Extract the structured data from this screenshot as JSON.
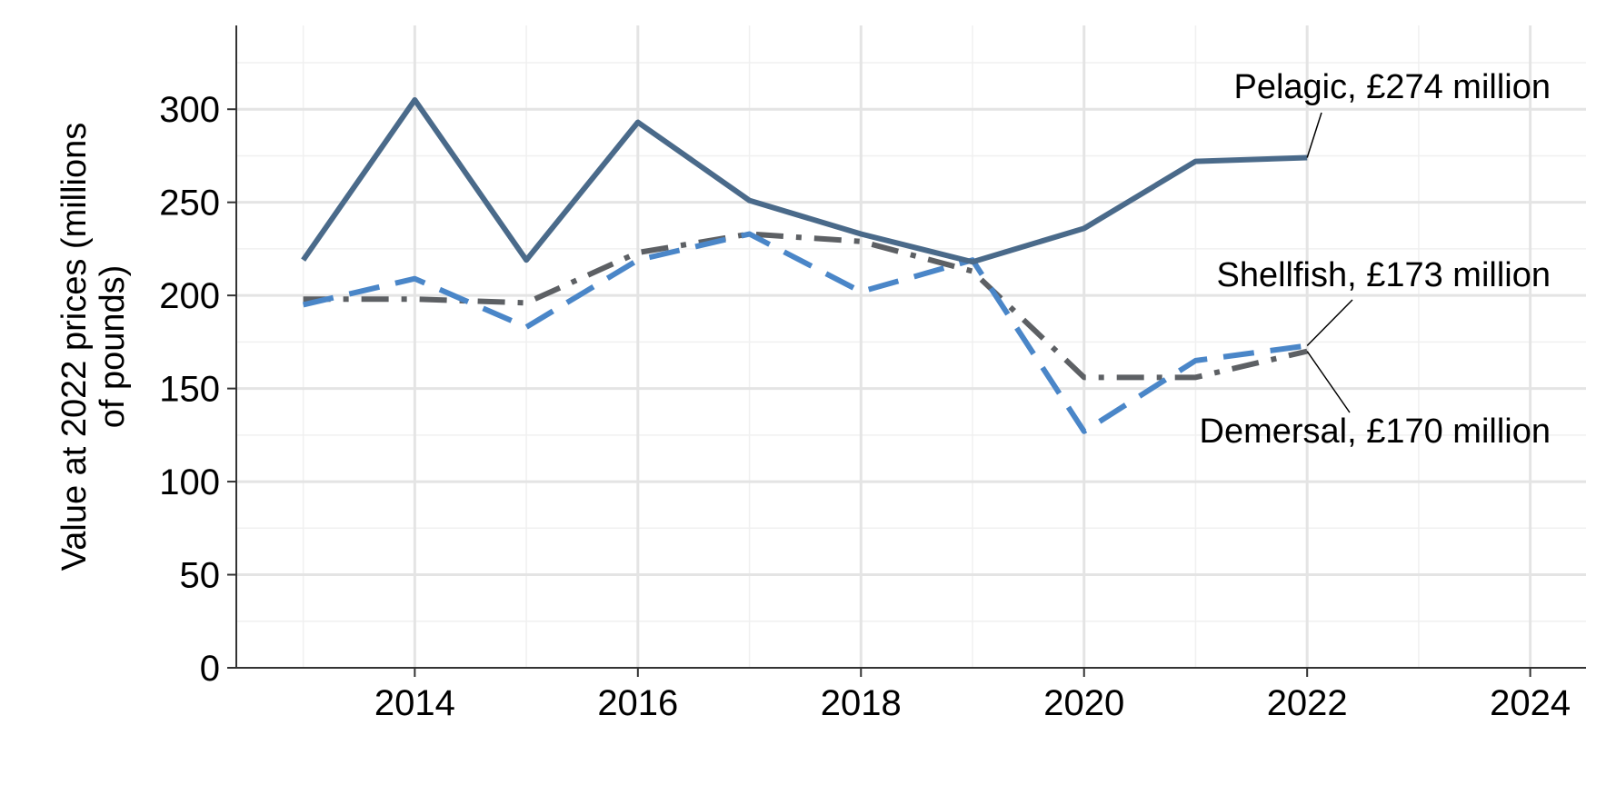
{
  "chart_data": {
    "type": "line",
    "title": "",
    "xlabel": "",
    "ylabel_lines": [
      "Value at 2022 prices (millions",
      "of pounds)"
    ],
    "xlim": [
      2012.4,
      2024.5
    ],
    "ylim": [
      0,
      345
    ],
    "x_ticks": [
      2014,
      2016,
      2018,
      2020,
      2022,
      2024
    ],
    "x_tick_labels": [
      "2014",
      "2016",
      "2018",
      "2020",
      "2022",
      "2024"
    ],
    "x_minor_grid": [
      2013,
      2015,
      2017,
      2019,
      2021,
      2023
    ],
    "y_ticks": [
      0,
      50,
      100,
      150,
      200,
      250,
      300
    ],
    "y_tick_labels": [
      "0",
      "50",
      "100",
      "150",
      "200",
      "250",
      "300"
    ],
    "y_minor_grid": [
      25,
      75,
      125,
      175,
      225,
      275,
      325
    ],
    "grid": true,
    "legend": "none",
    "x": [
      2013,
      2014,
      2015,
      2016,
      2017,
      2018,
      2019,
      2020,
      2021,
      2022
    ],
    "series": [
      {
        "key": "pelagic",
        "values": [
          219,
          305,
          219,
          293,
          251,
          233,
          218,
          236,
          272,
          274
        ],
        "color": "#4a6a8a",
        "dash": "solid",
        "label": "Pelagic, £274 million"
      },
      {
        "key": "shellfish",
        "values": [
          195,
          209,
          183,
          219,
          233,
          202,
          219,
          127,
          165,
          173
        ],
        "color": "#4a86c8",
        "dash": "dashed",
        "label": "Shellfish, £173 million"
      },
      {
        "key": "demersal",
        "values": [
          198,
          198,
          196,
          223,
          233,
          229,
          213,
          156,
          156,
          170
        ],
        "color": "#5d6064",
        "dash": "dashdot",
        "label": "Demersal, £170 million"
      }
    ]
  }
}
